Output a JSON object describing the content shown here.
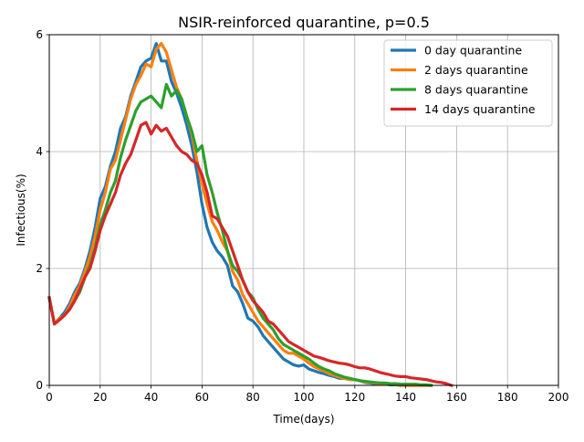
{
  "chart_data": {
    "type": "line",
    "title": "NSIR-reinforced quarantine, p=0.5",
    "xlabel": "Time(days)",
    "ylabel": "Infectious(%)",
    "xlim": [
      0,
      200
    ],
    "ylim": [
      0,
      6
    ],
    "xticks": [
      "0",
      "20",
      "40",
      "60",
      "80",
      "100",
      "120",
      "140",
      "160",
      "180",
      "200"
    ],
    "yticks": [
      "0",
      "2",
      "4",
      "6"
    ],
    "grid": true,
    "legend_position": "top-right",
    "series": [
      {
        "name": "0 day quarantine",
        "color": "#1f77b4",
        "x": [
          0,
          2,
          4,
          6,
          8,
          10,
          12,
          14,
          16,
          18,
          20,
          22,
          24,
          26,
          28,
          30,
          32,
          34,
          36,
          38,
          40,
          42,
          44,
          46,
          48,
          50,
          52,
          54,
          56,
          58,
          60,
          62,
          64,
          66,
          68,
          70,
          72,
          74,
          76,
          78,
          80,
          82,
          84,
          86,
          88,
          90,
          92,
          94,
          96,
          98,
          100,
          102,
          104,
          106,
          108,
          110,
          112,
          114,
          116,
          118,
          120,
          122,
          124,
          126,
          128,
          130,
          132,
          134,
          136,
          138,
          140,
          142,
          144,
          146,
          148,
          150
        ],
        "y": [
          1.5,
          1.05,
          1.15,
          1.25,
          1.4,
          1.6,
          1.75,
          2.0,
          2.3,
          2.7,
          3.2,
          3.4,
          3.75,
          4.0,
          4.4,
          4.6,
          4.95,
          5.2,
          5.45,
          5.55,
          5.6,
          5.85,
          5.55,
          5.55,
          5.2,
          5.0,
          4.75,
          4.45,
          4.1,
          3.65,
          3.1,
          2.7,
          2.45,
          2.3,
          2.2,
          2.05,
          1.7,
          1.6,
          1.4,
          1.15,
          1.1,
          1.0,
          0.85,
          0.75,
          0.65,
          0.55,
          0.45,
          0.4,
          0.35,
          0.33,
          0.35,
          0.28,
          0.25,
          0.22,
          0.2,
          0.17,
          0.15,
          0.12,
          0.12,
          0.1,
          0.1,
          0.08,
          0.05,
          0.04,
          0.03,
          0.02,
          0.02,
          0.01,
          0.01,
          0.0,
          0.0,
          0.0,
          0.0,
          0.0,
          0.0,
          0.0
        ]
      },
      {
        "name": "2 days quarantine",
        "color": "#ff7f0e",
        "x": [
          0,
          2,
          4,
          6,
          8,
          10,
          12,
          14,
          16,
          18,
          20,
          22,
          24,
          26,
          28,
          30,
          32,
          34,
          36,
          38,
          40,
          42,
          44,
          46,
          48,
          50,
          52,
          54,
          56,
          58,
          60,
          62,
          64,
          66,
          68,
          70,
          72,
          74,
          76,
          78,
          80,
          82,
          84,
          86,
          88,
          90,
          92,
          94,
          96,
          98,
          100,
          102,
          104,
          106,
          108,
          110,
          112,
          114,
          116,
          118,
          120,
          122,
          124,
          126,
          128,
          130,
          132,
          134,
          136,
          138,
          140,
          142,
          144,
          146,
          148,
          150
        ],
        "y": [
          1.5,
          1.05,
          1.15,
          1.2,
          1.35,
          1.55,
          1.7,
          1.95,
          2.2,
          2.55,
          3.0,
          3.3,
          3.7,
          3.85,
          4.2,
          4.55,
          4.9,
          5.15,
          5.3,
          5.5,
          5.45,
          5.75,
          5.85,
          5.7,
          5.4,
          5.1,
          4.9,
          4.6,
          4.3,
          3.85,
          3.45,
          3.1,
          2.8,
          2.65,
          2.45,
          2.3,
          1.95,
          1.8,
          1.55,
          1.4,
          1.25,
          1.1,
          1.0,
          0.9,
          0.8,
          0.7,
          0.6,
          0.55,
          0.55,
          0.5,
          0.45,
          0.38,
          0.32,
          0.28,
          0.24,
          0.2,
          0.17,
          0.14,
          0.12,
          0.1,
          0.1,
          0.08,
          0.06,
          0.05,
          0.04,
          0.03,
          0.02,
          0.02,
          0.01,
          0.01,
          0.0,
          0.0,
          0.0,
          0.0,
          0.0,
          0.0
        ]
      },
      {
        "name": "8 days quarantine",
        "color": "#2ca02c",
        "x": [
          0,
          2,
          4,
          6,
          8,
          10,
          12,
          14,
          16,
          18,
          20,
          22,
          24,
          26,
          28,
          30,
          32,
          34,
          36,
          38,
          40,
          42,
          44,
          46,
          48,
          50,
          52,
          54,
          56,
          58,
          60,
          62,
          64,
          66,
          68,
          70,
          72,
          74,
          76,
          78,
          80,
          82,
          84,
          86,
          88,
          90,
          92,
          94,
          96,
          98,
          100,
          102,
          104,
          106,
          108,
          110,
          112,
          114,
          116,
          118,
          120,
          122,
          124,
          126,
          128,
          130,
          132,
          134,
          136,
          138,
          140,
          142,
          144,
          146,
          148,
          150
        ],
        "y": [
          1.5,
          1.05,
          1.12,
          1.2,
          1.3,
          1.45,
          1.6,
          1.85,
          2.05,
          2.35,
          2.75,
          3.0,
          3.3,
          3.5,
          3.9,
          4.2,
          4.45,
          4.7,
          4.85,
          4.9,
          4.95,
          4.85,
          4.75,
          5.15,
          4.95,
          5.05,
          4.9,
          4.6,
          4.35,
          4.0,
          4.1,
          3.6,
          3.3,
          2.95,
          2.65,
          2.3,
          2.05,
          1.95,
          1.8,
          1.6,
          1.5,
          1.3,
          1.15,
          1.05,
          0.95,
          0.8,
          0.7,
          0.65,
          0.6,
          0.55,
          0.5,
          0.45,
          0.38,
          0.32,
          0.28,
          0.25,
          0.2,
          0.17,
          0.14,
          0.12,
          0.1,
          0.08,
          0.07,
          0.06,
          0.05,
          0.04,
          0.04,
          0.03,
          0.03,
          0.02,
          0.02,
          0.02,
          0.02,
          0.01,
          0.01,
          0.0
        ]
      },
      {
        "name": "14 days quarantine",
        "color": "#d62728",
        "x": [
          0,
          2,
          4,
          6,
          8,
          10,
          12,
          14,
          16,
          18,
          20,
          22,
          24,
          26,
          28,
          30,
          32,
          34,
          36,
          38,
          40,
          42,
          44,
          46,
          48,
          50,
          52,
          54,
          56,
          58,
          60,
          62,
          64,
          66,
          68,
          70,
          72,
          74,
          76,
          78,
          80,
          82,
          84,
          86,
          88,
          90,
          92,
          94,
          96,
          98,
          100,
          102,
          104,
          106,
          108,
          110,
          112,
          114,
          116,
          118,
          120,
          122,
          124,
          126,
          128,
          130,
          132,
          134,
          136,
          138,
          140,
          142,
          144,
          146,
          148,
          150,
          152,
          154,
          156,
          158
        ],
        "y": [
          1.5,
          1.05,
          1.12,
          1.2,
          1.3,
          1.45,
          1.65,
          1.85,
          2.0,
          2.3,
          2.65,
          2.9,
          3.1,
          3.3,
          3.6,
          3.8,
          3.95,
          4.2,
          4.45,
          4.5,
          4.3,
          4.45,
          4.35,
          4.4,
          4.25,
          4.1,
          4.0,
          3.95,
          3.85,
          3.8,
          3.6,
          3.3,
          2.9,
          2.85,
          2.7,
          2.55,
          2.3,
          2.05,
          1.8,
          1.6,
          1.45,
          1.35,
          1.25,
          1.1,
          1.05,
          0.95,
          0.85,
          0.75,
          0.7,
          0.65,
          0.6,
          0.55,
          0.5,
          0.48,
          0.45,
          0.42,
          0.4,
          0.38,
          0.37,
          0.35,
          0.32,
          0.3,
          0.3,
          0.28,
          0.25,
          0.22,
          0.2,
          0.18,
          0.16,
          0.15,
          0.15,
          0.13,
          0.12,
          0.11,
          0.1,
          0.08,
          0.06,
          0.05,
          0.03,
          0.0
        ]
      }
    ]
  }
}
